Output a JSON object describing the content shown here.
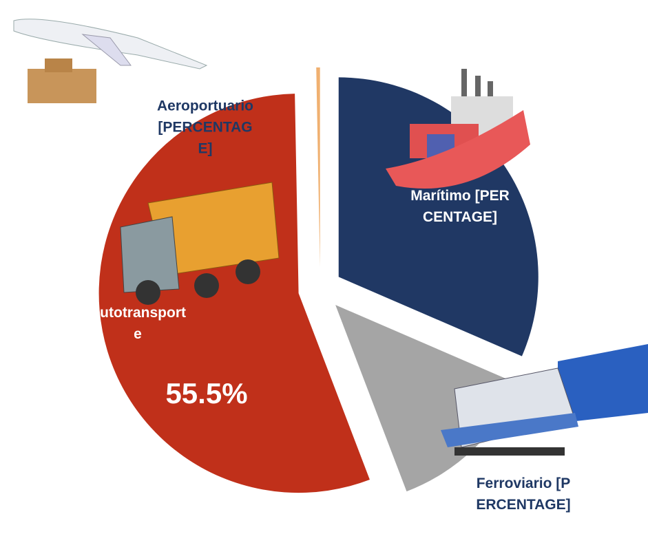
{
  "chart_data": {
    "type": "pie",
    "categories": [
      "Marítimo",
      "Ferroviario",
      "Autotransporte",
      "Aeroportuario"
    ],
    "values": [
      31.5,
      12.7,
      55.5,
      0.3
    ],
    "value_labels": [
      "[PERCENTAGE]",
      "[PERCENTAGE]",
      "55.5%",
      "[PERCENTAGE]"
    ],
    "colors": [
      "#203864",
      "#a5a5a5",
      "#c0301a",
      "#f0b070"
    ]
  }
}
